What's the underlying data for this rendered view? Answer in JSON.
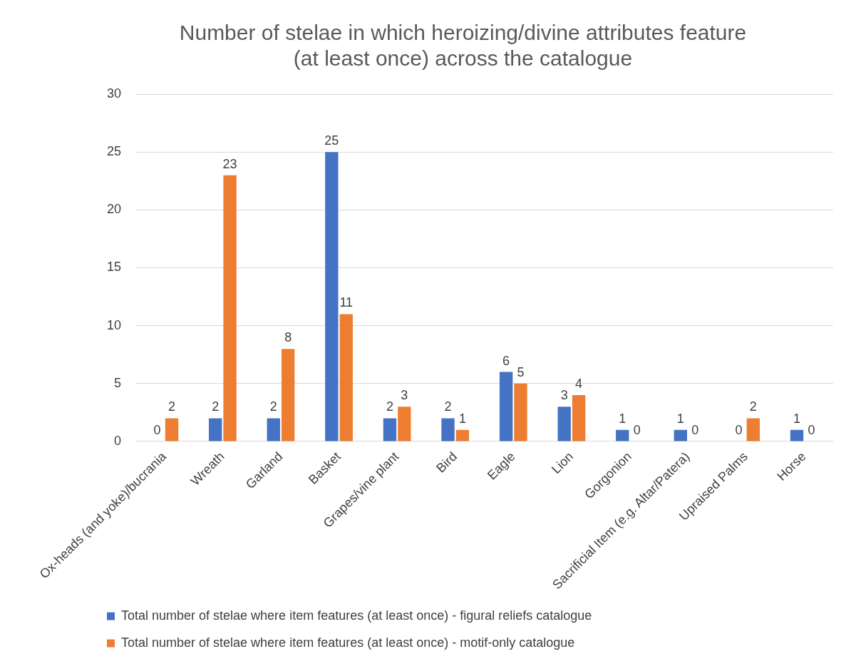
{
  "chart_data": {
    "type": "bar",
    "title": [
      "Number of stelae in which heroizing/divine attributes feature",
      "(at least once) across the catalogue"
    ],
    "categories": [
      "Ox-heads (and yoke)/bucrania",
      "Wreath",
      "Garland",
      "Basket",
      "Grapes/vine plant",
      "Bird",
      "Eagle",
      "Lion",
      "Gorgonion",
      "Sacrificial Item (e.g. Altar/Patera)",
      "Upraised Palms",
      "Horse"
    ],
    "series": [
      {
        "name": "Total number of stelae where item features (at least once) - figural reliefs catalogue",
        "color": "#4472c4",
        "values": [
          0,
          2,
          2,
          25,
          2,
          2,
          6,
          3,
          1,
          1,
          0,
          1
        ]
      },
      {
        "name": "Total number of stelae where item features (at least once) - motif-only catalogue",
        "color": "#ed7d31",
        "values": [
          2,
          23,
          8,
          11,
          3,
          1,
          5,
          4,
          0,
          0,
          2,
          0
        ]
      }
    ],
    "ylim": [
      0,
      30
    ],
    "yticks": [
      0,
      5,
      10,
      15,
      20,
      25,
      30
    ],
    "grid": "y",
    "legend": "bottom",
    "data_labels": true
  }
}
